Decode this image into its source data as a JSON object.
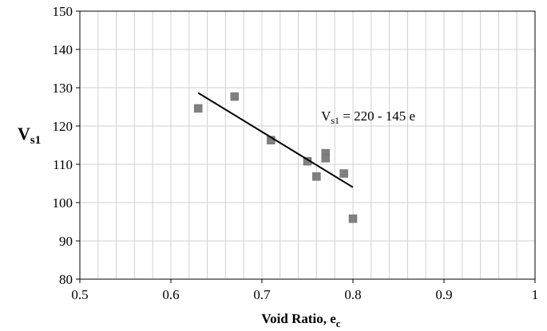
{
  "chart_data": {
    "type": "scatter",
    "xlabel": "Void Ratio, e",
    "xlabel_subscript": "c",
    "ylabel": "V",
    "ylabel_subscript": "s1",
    "xlim": [
      0.5,
      1.0
    ],
    "ylim": [
      80,
      150
    ],
    "x_ticks": [
      0.5,
      0.6,
      0.7,
      0.8,
      0.9,
      1.0
    ],
    "x_tick_labels": [
      "0.5",
      "0.6",
      "0.7",
      "0.8",
      "0.9",
      "1"
    ],
    "y_ticks": [
      80,
      90,
      100,
      110,
      120,
      130,
      140,
      150
    ],
    "y_tick_labels": [
      "80",
      "90",
      "100",
      "110",
      "120",
      "130",
      "140",
      "150"
    ],
    "grid": "on",
    "x_minor_step": 0.02,
    "series": [
      {
        "marker": "square",
        "color": "#808080",
        "points": [
          {
            "x": 0.63,
            "y": 124.6
          },
          {
            "x": 0.67,
            "y": 127.7
          },
          {
            "x": 0.71,
            "y": 116.3
          },
          {
            "x": 0.75,
            "y": 110.8
          },
          {
            "x": 0.76,
            "y": 106.8
          },
          {
            "x": 0.77,
            "y": 112.9
          },
          {
            "x": 0.77,
            "y": 111.6
          },
          {
            "x": 0.79,
            "y": 107.6
          },
          {
            "x": 0.8,
            "y": 95.8
          }
        ]
      }
    ],
    "trendline": {
      "color": "#000000",
      "x_start": 0.63,
      "x_end": 0.8,
      "intercept": 220,
      "slope": -145
    },
    "annotation": {
      "text_main": "V",
      "text_sub": "s1",
      "text_rest": " = 220 - 145 e",
      "x": 0.765,
      "y": 123.5
    }
  }
}
